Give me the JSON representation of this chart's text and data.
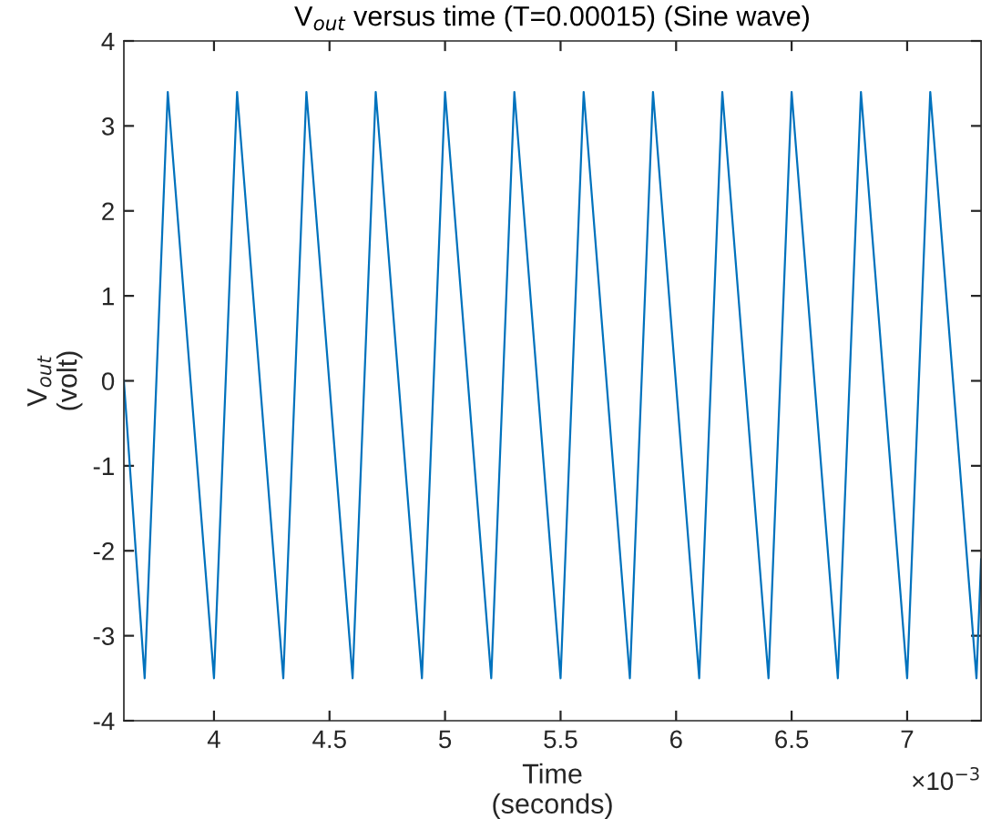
{
  "chart_data": {
    "type": "line",
    "title": "V$_{out}$ versus time (T=0.00015) (Sine wave)",
    "xlabel": "Time\n(seconds)",
    "ylabel": "V$_{out}$\n(volt)",
    "x": [
      3.61,
      3.7,
      3.8,
      4.0,
      4.1,
      4.3,
      4.4,
      4.6,
      4.7,
      4.9,
      5.0,
      5.2,
      5.3,
      5.5,
      5.6,
      5.8,
      5.9,
      6.1,
      6.2,
      6.4,
      6.5,
      6.7,
      6.8,
      7.0,
      7.1,
      7.3,
      7.32
    ],
    "series": [
      {
        "color": "#0072bd",
        "values": [
          0,
          -3.5,
          3.4,
          -3.5,
          3.4,
          -3.5,
          3.4,
          -3.5,
          3.4,
          -3.5,
          3.4,
          -3.5,
          3.4,
          -3.5,
          3.4,
          -3.5,
          3.4,
          -3.5,
          3.4,
          -3.5,
          3.4,
          -3.5,
          3.4,
          -3.5,
          3.4,
          -3.5,
          -2.1
        ]
      }
    ],
    "xlim": [
      3.61,
      7.32
    ],
    "ylim": [
      -4,
      4
    ],
    "xticks": [
      4,
      4.5,
      5,
      5.5,
      6,
      6.5,
      7
    ],
    "yticks": [
      -4,
      -3,
      -2,
      -1,
      0,
      1,
      2,
      3,
      4
    ],
    "annotations": [
      "×10$^{−3}$"
    ],
    "grid": false,
    "marker": "none",
    "line_style": "solid",
    "legend": false
  }
}
